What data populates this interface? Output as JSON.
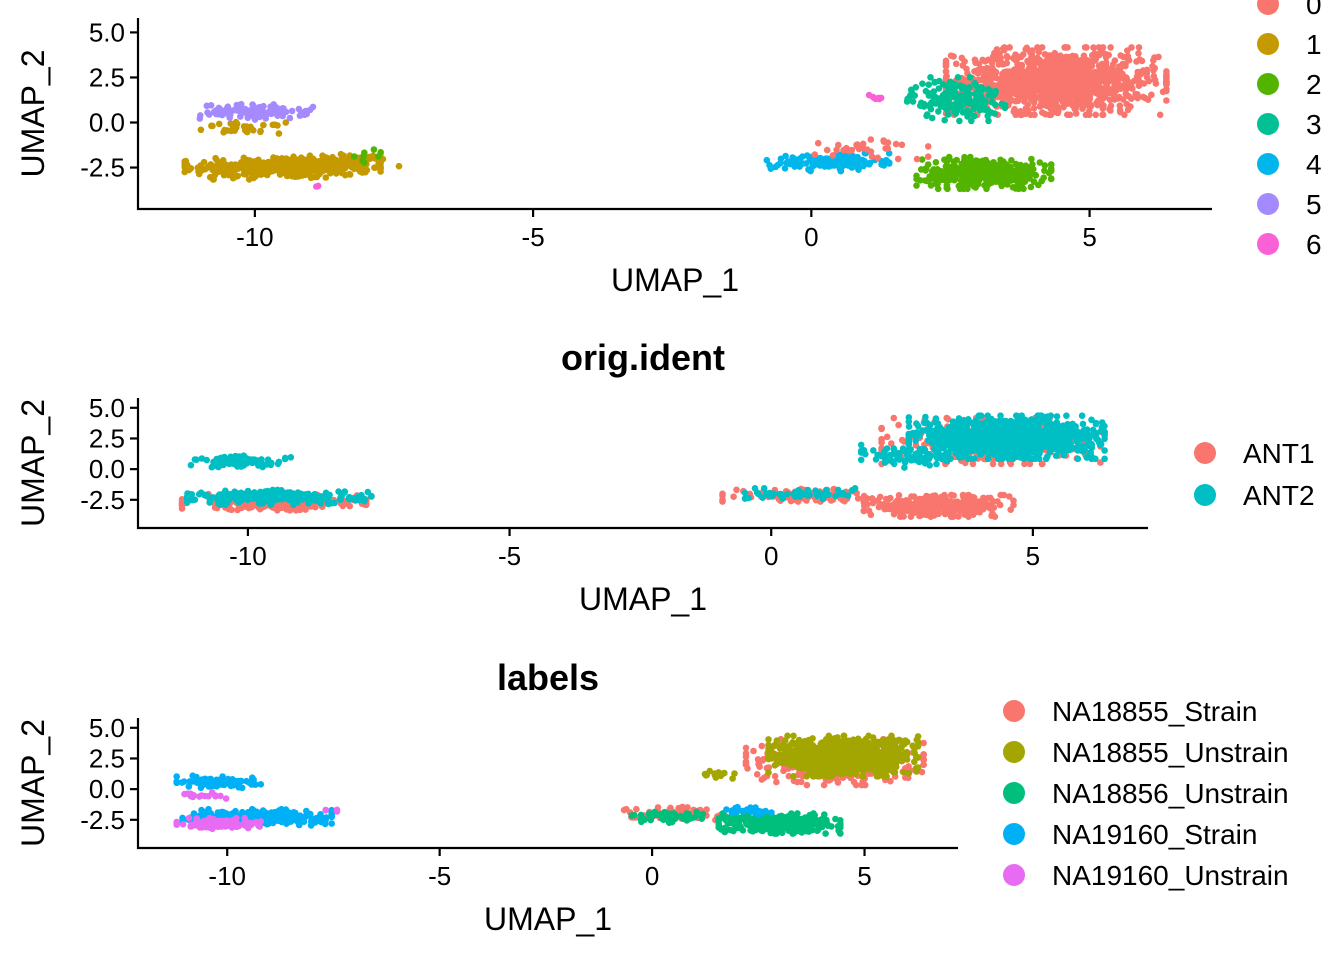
{
  "chart_data": [
    {
      "type": "scatter",
      "title": "",
      "xlabel": "UMAP_1",
      "ylabel": "UMAP_2",
      "xlim": [
        -12.1,
        7.2
      ],
      "ylim": [
        -4.8,
        5.8
      ],
      "xticks": [
        "-10",
        "-5",
        "0",
        "5"
      ],
      "yticks": [
        "5.0",
        "2.5",
        "0.0",
        "-2.5"
      ],
      "legend_position": "right",
      "series": [
        {
          "name": "0",
          "color": "#F8766D"
        },
        {
          "name": "1",
          "color": "#C49A00"
        },
        {
          "name": "2",
          "color": "#53B400"
        },
        {
          "name": "3",
          "color": "#00C094"
        },
        {
          "name": "4",
          "color": "#00B6EB"
        },
        {
          "name": "5",
          "color": "#A58AFF"
        },
        {
          "name": "6",
          "color": "#FB61D7"
        }
      ],
      "clusters": [
        {
          "series": 1,
          "cx": -9.5,
          "cy": -2.5,
          "rx": 1.6,
          "ry": 0.6,
          "n": 380
        },
        {
          "series": 1,
          "cx": -8.4,
          "cy": -2.2,
          "rx": 0.9,
          "ry": 0.4,
          "n": 60
        },
        {
          "series": 1,
          "cx": -10.2,
          "cy": -0.3,
          "rx": 0.7,
          "ry": 0.3,
          "n": 30
        },
        {
          "series": 5,
          "cx": -10.0,
          "cy": 0.6,
          "rx": 0.95,
          "ry": 0.4,
          "n": 110
        },
        {
          "series": 2,
          "cx": -7.9,
          "cy": -1.9,
          "rx": 0.4,
          "ry": 0.4,
          "n": 8
        },
        {
          "series": 6,
          "cx": -8.9,
          "cy": -3.5,
          "rx": 0.05,
          "ry": 0.05,
          "n": 2
        },
        {
          "series": 0,
          "cx": 4.4,
          "cy": 2.3,
          "rx": 1.8,
          "ry": 1.7,
          "n": 1100
        },
        {
          "series": 3,
          "cx": 2.6,
          "cy": 1.3,
          "rx": 0.8,
          "ry": 1.1,
          "n": 180
        },
        {
          "series": 2,
          "cx": 3.1,
          "cy": -2.8,
          "rx": 1.1,
          "ry": 0.8,
          "n": 380
        },
        {
          "series": 4,
          "cx": 0.3,
          "cy": -2.2,
          "rx": 1.0,
          "ry": 0.45,
          "n": 150
        },
        {
          "series": 6,
          "cx": 1.2,
          "cy": 1.4,
          "rx": 0.15,
          "ry": 0.15,
          "n": 8
        },
        {
          "series": 0,
          "cx": 1.0,
          "cy": -1.5,
          "rx": 1.0,
          "ry": 0.6,
          "n": 35
        }
      ]
    },
    {
      "type": "scatter",
      "title": "orig.ident",
      "xlabel": "UMAP_1",
      "ylabel": "UMAP_2",
      "xlim": [
        -12.1,
        7.2
      ],
      "ylim": [
        -4.8,
        5.8
      ],
      "xticks": [
        "-10",
        "-5",
        "0",
        "5"
      ],
      "yticks": [
        "5.0",
        "2.5",
        "0.0",
        "-2.5"
      ],
      "legend_position": "right",
      "series": [
        {
          "name": "ANT1",
          "color": "#F8766D"
        },
        {
          "name": "ANT2",
          "color": "#00BFC4"
        }
      ],
      "clusters": [
        {
          "series": 0,
          "cx": -9.5,
          "cy": -2.7,
          "rx": 1.6,
          "ry": 0.6,
          "n": 260
        },
        {
          "series": 0,
          "cx": 3.2,
          "cy": -3.0,
          "rx": 1.3,
          "ry": 0.8,
          "n": 360
        },
        {
          "series": 0,
          "cx": 4.2,
          "cy": 2.3,
          "rx": 1.9,
          "ry": 1.7,
          "n": 300
        },
        {
          "series": 0,
          "cx": 0.5,
          "cy": -2.1,
          "rx": 1.3,
          "ry": 0.5,
          "n": 120
        },
        {
          "series": 1,
          "cx": -9.4,
          "cy": -2.3,
          "rx": 1.6,
          "ry": 0.55,
          "n": 240
        },
        {
          "series": 1,
          "cx": -10.1,
          "cy": 0.6,
          "rx": 0.9,
          "ry": 0.45,
          "n": 90
        },
        {
          "series": 1,
          "cx": 4.5,
          "cy": 2.6,
          "rx": 1.7,
          "ry": 1.6,
          "n": 1000
        },
        {
          "series": 1,
          "cx": 0.6,
          "cy": -2.0,
          "rx": 1.0,
          "ry": 0.4,
          "n": 60
        },
        {
          "series": 1,
          "cx": 2.6,
          "cy": 1.0,
          "rx": 0.8,
          "ry": 0.9,
          "n": 80
        }
      ]
    },
    {
      "type": "scatter",
      "title": "labels",
      "xlabel": "UMAP_1",
      "ylabel": "UMAP_2",
      "xlim": [
        -12.1,
        7.2
      ],
      "ylim": [
        -4.8,
        5.8
      ],
      "xticks": [
        "-10",
        "-5",
        "0",
        "5"
      ],
      "yticks": [
        "5.0",
        "2.5",
        "0.0",
        "-2.5"
      ],
      "legend_position": "right",
      "series": [
        {
          "name": "NA18855_Strain",
          "color": "#F8766D"
        },
        {
          "name": "NA18855_Unstrain",
          "color": "#A3A500"
        },
        {
          "name": "NA18856_Unstrain",
          "color": "#00BF7D"
        },
        {
          "name": "NA19160_Strain",
          "color": "#00B0F6"
        },
        {
          "name": "NA19160_Unstrain",
          "color": "#E76BF3"
        }
      ],
      "clusters": [
        {
          "series": 0,
          "cx": 4.3,
          "cy": 2.2,
          "rx": 1.9,
          "ry": 1.7,
          "n": 320
        },
        {
          "series": 0,
          "cx": 0.6,
          "cy": -2.0,
          "rx": 1.2,
          "ry": 0.5,
          "n": 80
        },
        {
          "series": 1,
          "cx": 4.5,
          "cy": 2.7,
          "rx": 1.6,
          "ry": 1.5,
          "n": 850
        },
        {
          "series": 1,
          "cx": 1.5,
          "cy": 1.2,
          "rx": 0.4,
          "ry": 0.3,
          "n": 15
        },
        {
          "series": 2,
          "cx": 3.0,
          "cy": -2.8,
          "rx": 1.3,
          "ry": 0.75,
          "n": 380
        },
        {
          "series": 2,
          "cx": 0.4,
          "cy": -2.3,
          "rx": 0.8,
          "ry": 0.4,
          "n": 60
        },
        {
          "series": 3,
          "cx": -9.3,
          "cy": -2.3,
          "rx": 1.6,
          "ry": 0.6,
          "n": 280
        },
        {
          "series": 3,
          "cx": -10.2,
          "cy": 0.6,
          "rx": 0.9,
          "ry": 0.45,
          "n": 90
        },
        {
          "series": 3,
          "cx": 2.3,
          "cy": -1.8,
          "rx": 0.5,
          "ry": 0.3,
          "n": 20
        },
        {
          "series": 4,
          "cx": -10.2,
          "cy": -2.8,
          "rx": 0.9,
          "ry": 0.4,
          "n": 130
        },
        {
          "series": 4,
          "cx": -10.5,
          "cy": -0.5,
          "rx": 0.5,
          "ry": 0.25,
          "n": 15
        },
        {
          "series": 4,
          "cx": -7.5,
          "cy": -1.8,
          "rx": 0.25,
          "ry": 0.2,
          "n": 3
        }
      ]
    }
  ]
}
